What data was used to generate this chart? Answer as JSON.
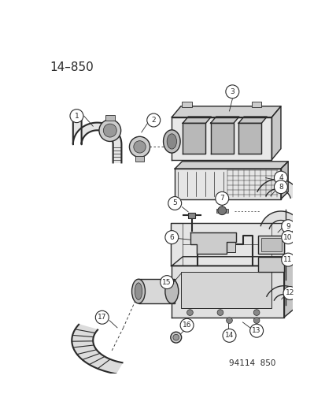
{
  "title": "14–850",
  "footer": "94114  850",
  "bg_color": "#ffffff",
  "line_color": "#2a2a2a",
  "title_fontsize": 11,
  "footer_fontsize": 7.5,
  "label_fontsize": 6.5,
  "label_circle_r": 0.025
}
